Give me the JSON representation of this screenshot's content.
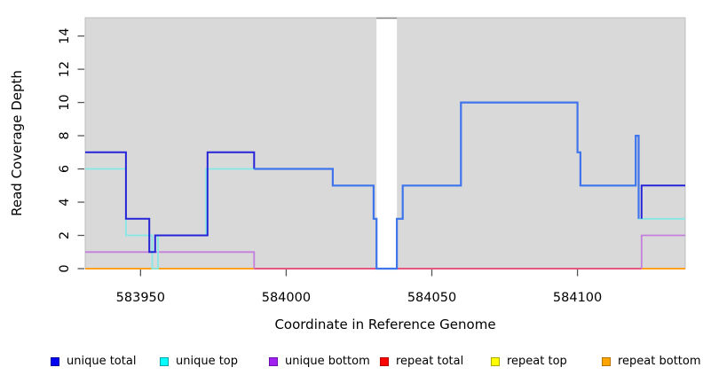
{
  "figure": {
    "plot_bg": "#d9d9d9",
    "plot_border": "#bdbdbd",
    "gap_top_edge_color": "#8a8a8a",
    "tick_color": "#555555"
  },
  "chart_data": {
    "type": "line",
    "style": "step",
    "title": "",
    "xlabel": "Coordinate in Reference Genome",
    "ylabel": "Read Coverage Depth",
    "xlim": [
      583931,
      584137
    ],
    "ylim": [
      0,
      15.1
    ],
    "x_ticks": [
      583950,
      584000,
      584050,
      584100
    ],
    "y_ticks": [
      0,
      2,
      4,
      6,
      8,
      10,
      12,
      14
    ],
    "grid": false,
    "legend_position": "bottom",
    "coverage_gap": {
      "from": 584031,
      "to": 584038
    },
    "series": [
      {
        "name": "unique total",
        "color": "#0000f0",
        "steps": [
          [
            583931,
            7
          ],
          [
            583945,
            3
          ],
          [
            583953,
            1
          ],
          [
            583955,
            2
          ],
          [
            583973,
            7
          ],
          [
            583989,
            6
          ],
          [
            584016,
            5
          ],
          [
            584030,
            3
          ],
          [
            584031,
            0
          ],
          [
            584038,
            3
          ],
          [
            584040,
            5
          ],
          [
            584060,
            10
          ],
          [
            584100,
            7
          ],
          [
            584101,
            5
          ],
          [
            584120,
            8
          ],
          [
            584121,
            3
          ],
          [
            584122,
            5
          ]
        ],
        "end": 584137
      },
      {
        "name": "unique top",
        "color": "#00ffff",
        "steps": [
          [
            583931,
            6
          ],
          [
            583945,
            2
          ],
          [
            583954,
            0
          ],
          [
            583956,
            2
          ],
          [
            583972.5,
            6
          ],
          [
            583989,
            6
          ],
          [
            584016,
            5
          ],
          [
            584030,
            3
          ],
          [
            584031,
            0
          ],
          [
            584038,
            3
          ],
          [
            584040,
            5
          ],
          [
            584060,
            10
          ],
          [
            584100,
            7
          ],
          [
            584101,
            5
          ],
          [
            584120,
            8
          ],
          [
            584121,
            3
          ]
        ],
        "end": 584137
      },
      {
        "name": "unique bottom",
        "color": "#a020f0",
        "steps": [
          [
            583931,
            1
          ],
          [
            583989,
            0
          ],
          [
            584122,
            2
          ]
        ],
        "end": 584137
      },
      {
        "name": "repeat total",
        "color": "#ff0000",
        "steps": [
          [
            583931,
            0
          ]
        ],
        "end": 584137
      },
      {
        "name": "repeat top",
        "color": "#ffff00",
        "steps": [
          [
            583931,
            0
          ]
        ],
        "end": 584137
      },
      {
        "name": "repeat bottom",
        "color": "#ffa500",
        "steps": [
          [
            583931,
            0
          ]
        ],
        "end": 584137
      }
    ],
    "render_paths": [
      {
        "name": "baseline-left-repeat-bottom",
        "color": "#ffa11c",
        "width": 2,
        "steps": [
          [
            583931,
            0
          ]
        ],
        "end": 583989
      },
      {
        "name": "baseline-middle-overlap",
        "color": "#e25680",
        "width": 2,
        "steps": [
          [
            583989,
            0
          ]
        ],
        "end": 584122
      },
      {
        "name": "baseline-right-repeat-bottom",
        "color": "#ffa11c",
        "width": 2,
        "steps": [
          [
            584122,
            0
          ]
        ],
        "end": 584137
      },
      {
        "name": "unique-bottom-left",
        "color": "#c47fdc",
        "width": 1.8,
        "steps": [
          [
            583931,
            1
          ],
          [
            583989,
            0
          ]
        ],
        "end": 583989
      },
      {
        "name": "unique-bottom-right",
        "color": "#c47fdc",
        "width": 1.8,
        "steps": [
          [
            584122,
            0
          ],
          [
            584122,
            2
          ]
        ],
        "end": 584137
      },
      {
        "name": "unique-top-line",
        "color": "#84e9e6",
        "width": 1.8,
        "steps": [
          [
            583931,
            6
          ],
          [
            583945,
            2
          ],
          [
            583954,
            0
          ],
          [
            583956,
            2
          ],
          [
            583972.5,
            6
          ],
          [
            583989,
            6
          ],
          [
            584016,
            5
          ],
          [
            584030,
            3
          ],
          [
            584031,
            0
          ],
          [
            584038,
            3
          ],
          [
            584040,
            5
          ],
          [
            584060,
            10
          ],
          [
            584100,
            7
          ],
          [
            584101,
            5
          ],
          [
            584120,
            8
          ],
          [
            584121,
            3
          ]
        ],
        "end": 584137
      },
      {
        "name": "unique-total-left",
        "color": "#2524d8",
        "width": 2,
        "steps": [
          [
            583931,
            7
          ],
          [
            583945,
            3
          ],
          [
            583953,
            1
          ],
          [
            583955,
            2
          ],
          [
            583973,
            7
          ],
          [
            583989,
            6
          ]
        ],
        "end": 583989
      },
      {
        "name": "unique-total-overlap-top",
        "color": "#3f74ec",
        "width": 2.2,
        "steps": [
          [
            583989,
            6
          ],
          [
            584016,
            5
          ],
          [
            584030,
            3
          ],
          [
            584031,
            0
          ],
          [
            584038,
            3
          ],
          [
            584040,
            5
          ],
          [
            584060,
            10
          ],
          [
            584100,
            7
          ],
          [
            584101,
            5
          ],
          [
            584120,
            8
          ],
          [
            584121,
            3
          ]
        ],
        "end": 584121
      },
      {
        "name": "unique-total-right",
        "color": "#2524d8",
        "width": 2,
        "steps": [
          [
            584122,
            3
          ],
          [
            584122,
            5
          ]
        ],
        "end": 584137
      }
    ]
  },
  "legend": {
    "items": [
      {
        "label": "unique total",
        "fill": "#0000f0",
        "border": "#0000a0"
      },
      {
        "label": "unique top",
        "fill": "#00ffff",
        "border": "#00a3ad"
      },
      {
        "label": "unique bottom",
        "fill": "#a020f0",
        "border": "#6a10a8"
      },
      {
        "label": "repeat total",
        "fill": "#ff0000",
        "border": "#b00000"
      },
      {
        "label": "repeat top",
        "fill": "#ffff00",
        "border": "#b0a800"
      },
      {
        "label": "repeat bottom",
        "fill": "#ffa500",
        "border": "#b57400"
      }
    ]
  }
}
